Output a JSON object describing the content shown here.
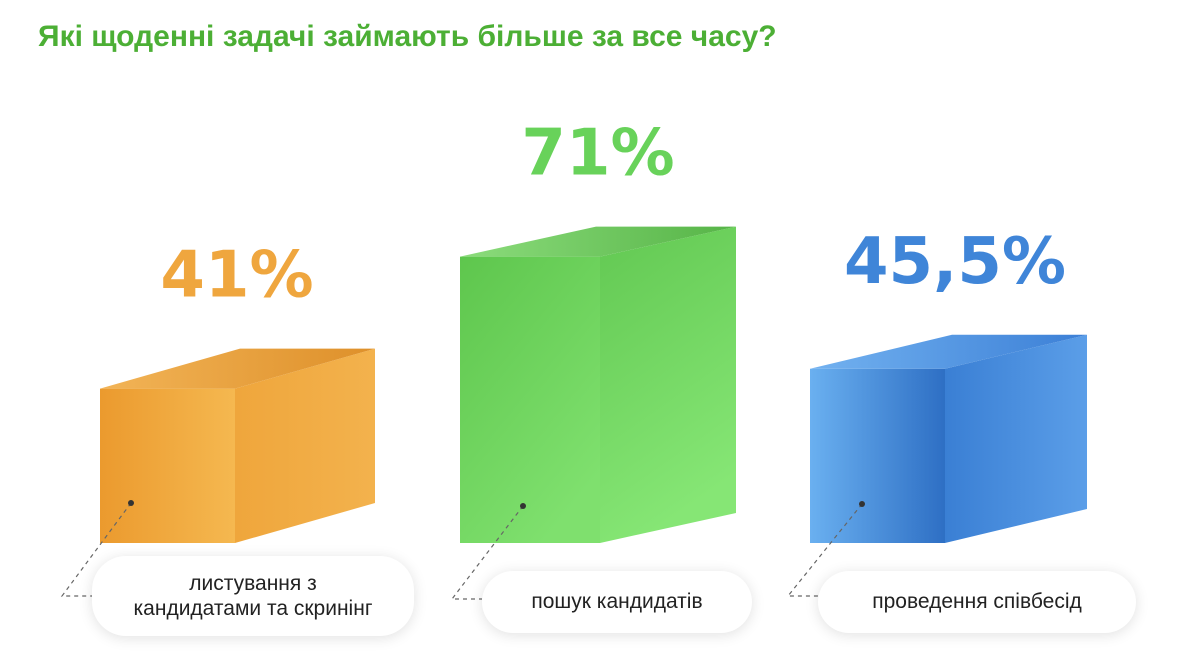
{
  "chart_data": {
    "type": "bar",
    "title": "Які щоденні задачі займають більше за все часу?",
    "categories": [
      "листування з кандидатами та скринінг",
      "пошук кандидатів",
      "проведення співбесід"
    ],
    "values": [
      41,
      71,
      45.5
    ],
    "value_labels": [
      "41%",
      "71%",
      "45,5%"
    ],
    "colors": [
      "#efa63e",
      "#68d25a",
      "#3f85d8"
    ],
    "style": "3d-boxes",
    "grid": false,
    "legend": "none"
  },
  "labels": {
    "bar1": "листування з\nкандидатами та скринінг",
    "bar2": "пошук кандидатів",
    "bar3": "проведення співбесід"
  },
  "colors": {
    "title": "#4caf35",
    "orange": "#efa63e",
    "green": "#68d25a",
    "blue": "#3f85d8"
  }
}
